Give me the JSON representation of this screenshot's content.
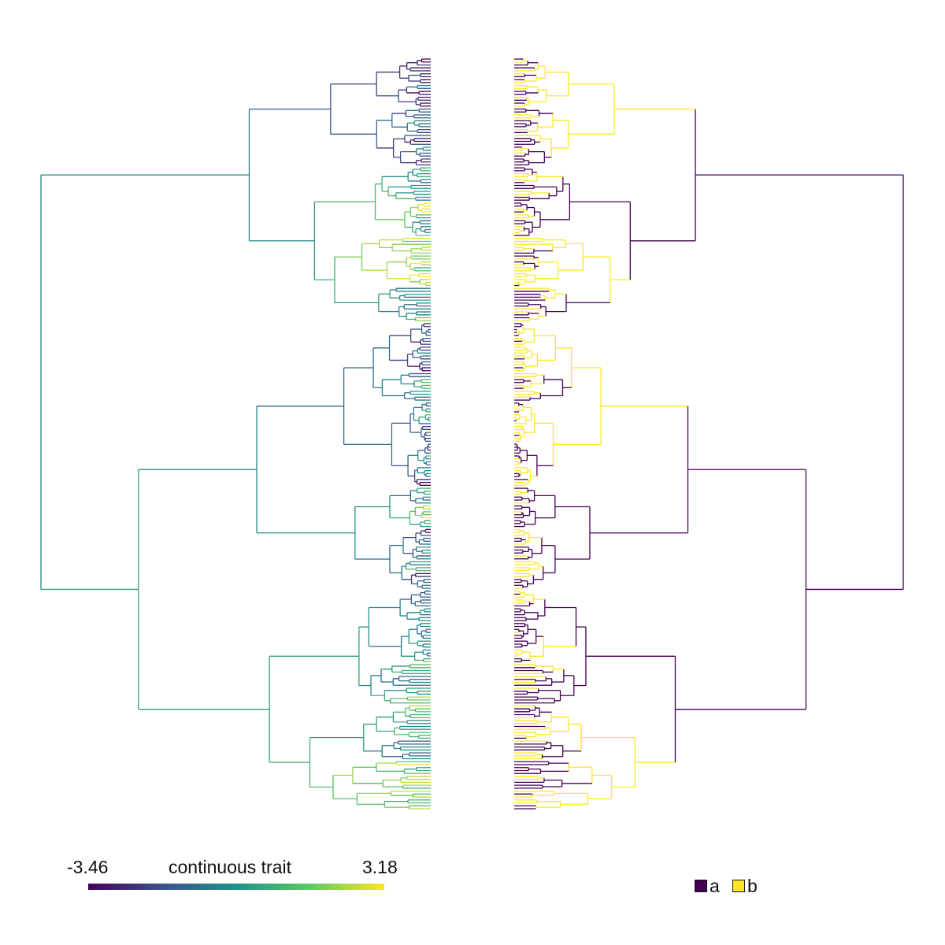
{
  "continuous_legend": {
    "min_label": "-3.46",
    "max_label": "3.18",
    "title": "continuous trait",
    "colors": [
      "#440154",
      "#3b528b",
      "#21908c",
      "#5dc863",
      "#fde725"
    ]
  },
  "discrete_legend": {
    "items": [
      {
        "label": "a",
        "color": "#440154"
      },
      {
        "label": "b",
        "color": "#fde725"
      }
    ]
  }
}
